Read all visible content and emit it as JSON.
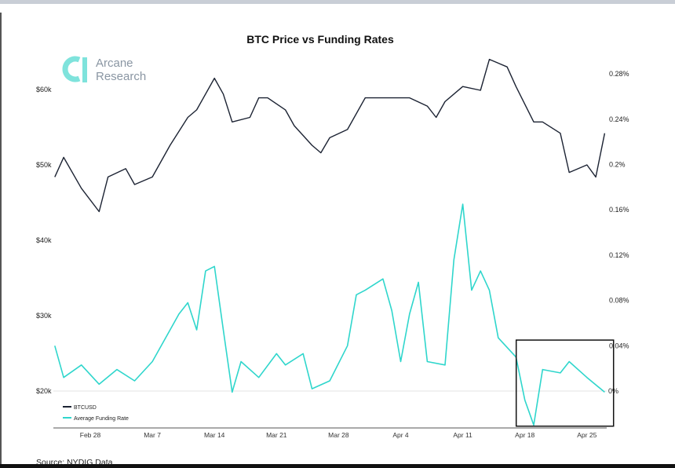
{
  "chart_data": {
    "type": "line",
    "title": "BTC Price vs Funding Rates",
    "source": "Source: NYDIG Data",
    "logo_text": [
      "Arcane",
      "Research"
    ],
    "x_ticks": [
      "Feb 28",
      "Mar 7",
      "Mar 14",
      "Mar 21",
      "Mar 28",
      "Apr 4",
      "Apr 11",
      "Apr 18",
      "Apr 25"
    ],
    "y_left": {
      "ticks": [
        "$20k",
        "$30k",
        "$40k",
        "$50k",
        "$60k"
      ],
      "tick_values": [
        20,
        30,
        40,
        50,
        60
      ],
      "unit": "thousand USD"
    },
    "y_right": {
      "ticks": [
        "0%",
        "0.04%",
        "0.08%",
        "0.12%",
        "0.16%",
        "0.2%",
        "0.24%",
        "0.28%"
      ],
      "tick_values": [
        0,
        0.04,
        0.08,
        0.12,
        0.16,
        0.2,
        0.24,
        0.28
      ],
      "unit": "%"
    },
    "grid": false,
    "legend_placement": "bottom-left",
    "colors": {
      "btc": "#1c2333",
      "funding": "#2fd6cc",
      "highlight": "#111111"
    },
    "series": [
      {
        "name": "BTCUSD",
        "axis": "left",
        "points": [
          [
            "Feb 24",
            48.4
          ],
          [
            "Feb 25",
            51.0
          ],
          [
            "Feb 27",
            46.9
          ],
          [
            "Mar 1",
            43.8
          ],
          [
            "Mar 2",
            48.4
          ],
          [
            "Mar 4",
            49.5
          ],
          [
            "Mar 5",
            47.4
          ],
          [
            "Mar 7",
            48.4
          ],
          [
            "Mar 9",
            52.6
          ],
          [
            "Mar 11",
            56.3
          ],
          [
            "Mar 12",
            57.3
          ],
          [
            "Mar 14",
            61.5
          ],
          [
            "Mar 15",
            59.4
          ],
          [
            "Mar 16",
            55.7
          ],
          [
            "Mar 18",
            56.3
          ],
          [
            "Mar 19",
            58.9
          ],
          [
            "Mar 20",
            58.9
          ],
          [
            "Mar 22",
            57.3
          ],
          [
            "Mar 23",
            55.2
          ],
          [
            "Mar 25",
            52.6
          ],
          [
            "Mar 26",
            51.6
          ],
          [
            "Mar 27",
            53.6
          ],
          [
            "Mar 29",
            54.7
          ],
          [
            "Mar 31",
            58.9
          ],
          [
            "Apr 2",
            58.9
          ],
          [
            "Apr 5",
            58.9
          ],
          [
            "Apr 7",
            57.8
          ],
          [
            "Apr 8",
            56.3
          ],
          [
            "Apr 9",
            58.4
          ],
          [
            "Apr 11",
            60.4
          ],
          [
            "Apr 13",
            59.9
          ],
          [
            "Apr 14",
            64.0
          ],
          [
            "Apr 16",
            63.0
          ],
          [
            "Apr 17",
            60.4
          ],
          [
            "Apr 19",
            55.7
          ],
          [
            "Apr 20",
            55.7
          ],
          [
            "Apr 22",
            54.2
          ],
          [
            "Apr 23",
            49.0
          ],
          [
            "Apr 25",
            50.0
          ],
          [
            "Apr 26",
            48.4
          ],
          [
            "Apr 27",
            54.2
          ]
        ]
      },
      {
        "name": "Average Funding Rate",
        "axis": "right",
        "points": [
          [
            "Feb 24",
            0.04
          ],
          [
            "Feb 25",
            0.012
          ],
          [
            "Feb 27",
            0.023
          ],
          [
            "Mar 1",
            0.006
          ],
          [
            "Mar 3",
            0.019
          ],
          [
            "Mar 5",
            0.009
          ],
          [
            "Mar 7",
            0.026
          ],
          [
            "Mar 9",
            0.054
          ],
          [
            "Mar 10",
            0.068
          ],
          [
            "Mar 11",
            0.078
          ],
          [
            "Mar 12",
            0.054
          ],
          [
            "Mar 13",
            0.106
          ],
          [
            "Mar 14",
            0.11
          ],
          [
            "Mar 15",
            0.054
          ],
          [
            "Mar 16",
            -0.001
          ],
          [
            "Mar 17",
            0.026
          ],
          [
            "Mar 19",
            0.012
          ],
          [
            "Mar 21",
            0.033
          ],
          [
            "Mar 22",
            0.023
          ],
          [
            "Mar 24",
            0.033
          ],
          [
            "Mar 25",
            0.002
          ],
          [
            "Mar 27",
            0.009
          ],
          [
            "Mar 29",
            0.04
          ],
          [
            "Mar 30",
            0.085
          ],
          [
            "Mar 31",
            0.089
          ],
          [
            "Apr 2",
            0.099
          ],
          [
            "Apr 3",
            0.071
          ],
          [
            "Apr 4",
            0.026
          ],
          [
            "Apr 5",
            0.068
          ],
          [
            "Apr 6",
            0.096
          ],
          [
            "Apr 7",
            0.026
          ],
          [
            "Apr 9",
            0.023
          ],
          [
            "Apr 10",
            0.116
          ],
          [
            "Apr 11",
            0.165
          ],
          [
            "Apr 12",
            0.089
          ],
          [
            "Apr 13",
            0.106
          ],
          [
            "Apr 14",
            0.089
          ],
          [
            "Apr 15",
            0.047
          ],
          [
            "Apr 17",
            0.03
          ],
          [
            "Apr 18",
            -0.008
          ],
          [
            "Apr 19",
            -0.03
          ],
          [
            "Apr 20",
            0.019
          ],
          [
            "Apr 22",
            0.016
          ],
          [
            "Apr 23",
            0.026
          ],
          [
            "Apr 25",
            0.012
          ],
          [
            "Apr 27",
            -0.001
          ]
        ]
      }
    ],
    "annotation": {
      "type": "rectangle",
      "x_range": [
        "Apr 18",
        "Apr 28"
      ],
      "y_range_right": [
        -0.031,
        0.045
      ]
    }
  }
}
